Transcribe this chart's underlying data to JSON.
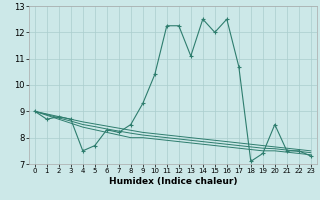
{
  "xlabel": "Humidex (Indice chaleur)",
  "background_color": "#cce8e8",
  "grid_color": "#aacece",
  "line_color": "#2e7d6e",
  "x_values": [
    0,
    1,
    2,
    3,
    4,
    5,
    6,
    7,
    8,
    9,
    10,
    11,
    12,
    13,
    14,
    15,
    16,
    17,
    18,
    19,
    20,
    21,
    22,
    23
  ],
  "main_series": [
    9.0,
    8.7,
    8.8,
    8.7,
    7.5,
    7.7,
    8.3,
    8.2,
    8.5,
    9.3,
    10.4,
    12.25,
    12.25,
    11.1,
    12.5,
    12.0,
    12.5,
    10.7,
    7.1,
    7.4,
    8.5,
    7.5,
    7.5,
    7.3
  ],
  "trend_lines": [
    [
      9.0,
      8.85,
      8.7,
      8.55,
      8.4,
      8.3,
      8.2,
      8.1,
      8.0,
      8.0,
      7.95,
      7.9,
      7.85,
      7.8,
      7.75,
      7.7,
      7.65,
      7.6,
      7.55,
      7.5,
      7.5,
      7.45,
      7.4,
      7.35
    ],
    [
      9.0,
      8.88,
      8.75,
      8.63,
      8.5,
      8.42,
      8.33,
      8.25,
      8.17,
      8.1,
      8.05,
      8.0,
      7.95,
      7.9,
      7.85,
      7.8,
      7.75,
      7.7,
      7.65,
      7.6,
      7.58,
      7.53,
      7.48,
      7.43
    ],
    [
      9.0,
      8.9,
      8.8,
      8.7,
      8.6,
      8.52,
      8.44,
      8.36,
      8.28,
      8.2,
      8.15,
      8.1,
      8.05,
      8.0,
      7.95,
      7.9,
      7.85,
      7.8,
      7.75,
      7.7,
      7.65,
      7.6,
      7.55,
      7.5
    ]
  ],
  "xlim": [
    -0.5,
    23.5
  ],
  "ylim": [
    7.0,
    13.0
  ],
  "yticks": [
    7,
    8,
    9,
    10,
    11,
    12,
    13
  ],
  "xticks": [
    0,
    1,
    2,
    3,
    4,
    5,
    6,
    7,
    8,
    9,
    10,
    11,
    12,
    13,
    14,
    15,
    16,
    17,
    18,
    19,
    20,
    21,
    22,
    23
  ]
}
